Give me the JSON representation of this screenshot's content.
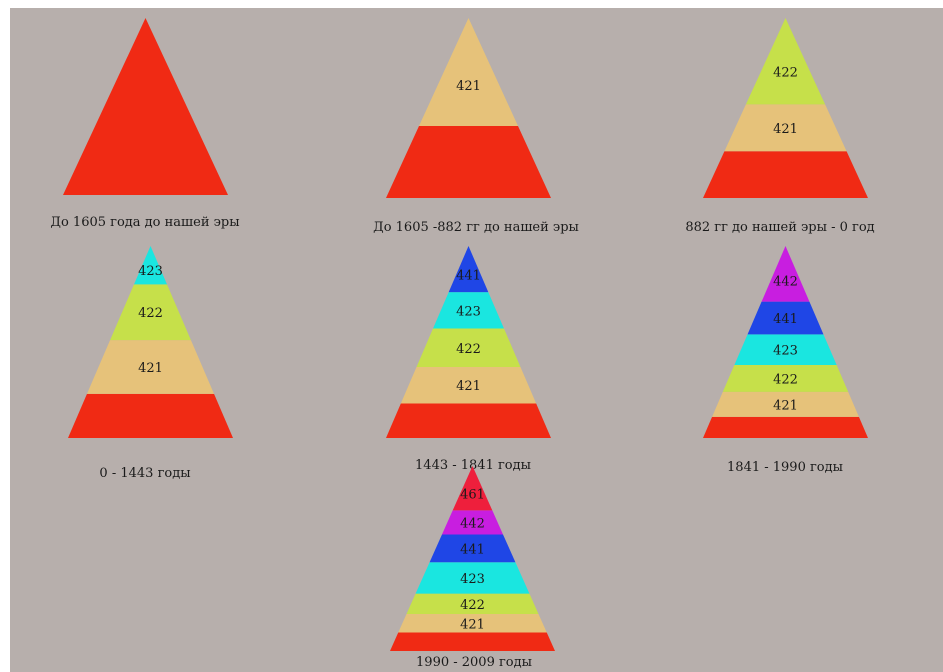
{
  "colors": {
    "background": "#b7afac",
    "base": "#f02a14",
    "421": "#e6c27a",
    "422": "#c6e04a",
    "423": "#1ae6e0",
    "441": "#1f46e6",
    "442": "#c81ee0",
    "461": "#ee1f3c"
  },
  "pyramids": [
    {
      "caption": "До 1605 года до нашей эры",
      "layers": [
        {
          "label": "",
          "color": "#f02a14",
          "frac": 1.0
        }
      ]
    },
    {
      "caption": "До 1605 -882 гг до нашей эры",
      "layers": [
        {
          "label": "",
          "color": "#f02a14",
          "frac": 0.4
        },
        {
          "label": "421",
          "color": "#e6c27a",
          "frac": 0.6
        }
      ]
    },
    {
      "caption": "882 гг до нашей эры - 0 год",
      "layers": [
        {
          "label": "",
          "color": "#f02a14",
          "frac": 0.26
        },
        {
          "label": "421",
          "color": "#e6c27a",
          "frac": 0.26
        },
        {
          "label": "422",
          "color": "#c6e04a",
          "frac": 0.48
        }
      ]
    },
    {
      "caption": "0 - 1443  годы",
      "layers": [
        {
          "label": "",
          "color": "#f02a14",
          "frac": 0.23
        },
        {
          "label": "421",
          "color": "#e6c27a",
          "frac": 0.28
        },
        {
          "label": "422",
          "color": "#c6e04a",
          "frac": 0.29
        },
        {
          "label": "423",
          "color": "#1ae6e0",
          "frac": 0.2
        }
      ]
    },
    {
      "caption": "1443  - 1841 годы",
      "layers": [
        {
          "label": "",
          "color": "#f02a14",
          "frac": 0.18
        },
        {
          "label": "421",
          "color": "#e6c27a",
          "frac": 0.19
        },
        {
          "label": "422",
          "color": "#c6e04a",
          "frac": 0.2
        },
        {
          "label": "423",
          "color": "#1ae6e0",
          "frac": 0.19
        },
        {
          "label": "441",
          "color": "#1f46e6",
          "frac": 0.24
        }
      ]
    },
    {
      "caption": "1841 - 1990 годы",
      "layers": [
        {
          "label": "",
          "color": "#f02a14",
          "frac": 0.11
        },
        {
          "label": "421",
          "color": "#e6c27a",
          "frac": 0.13
        },
        {
          "label": "422",
          "color": "#c6e04a",
          "frac": 0.14
        },
        {
          "label": "423",
          "color": "#1ae6e0",
          "frac": 0.16
        },
        {
          "label": "441",
          "color": "#1f46e6",
          "frac": 0.17
        },
        {
          "label": "442",
          "color": "#c81ee0",
          "frac": 0.29
        }
      ]
    },
    {
      "caption": "1990 - 2009 годы",
      "layers": [
        {
          "label": "",
          "color": "#f02a14",
          "frac": 0.1
        },
        {
          "label": "421",
          "color": "#e6c27a",
          "frac": 0.1
        },
        {
          "label": "422",
          "color": "#c6e04a",
          "frac": 0.11
        },
        {
          "label": "423",
          "color": "#1ae6e0",
          "frac": 0.17
        },
        {
          "label": "441",
          "color": "#1f46e6",
          "frac": 0.15
        },
        {
          "label": "442",
          "color": "#c81ee0",
          "frac": 0.13
        },
        {
          "label": "461",
          "color": "#ee1f3c",
          "frac": 0.24
        }
      ]
    }
  ]
}
